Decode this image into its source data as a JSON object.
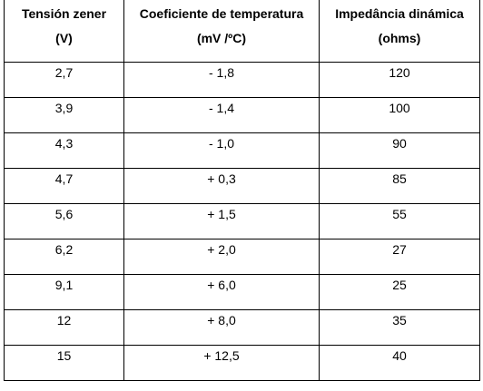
{
  "table": {
    "headers": [
      {
        "line1": "Tensión zener",
        "line2": "(V)"
      },
      {
        "line1": "Coeficiente de temperatura",
        "line2": "(mV /ºC)"
      },
      {
        "line1": "Impedância dinámica",
        "line2": "(ohms)"
      }
    ],
    "rows": [
      [
        "2,7",
        "- 1,8",
        "120"
      ],
      [
        "3,9",
        "- 1,4",
        "100"
      ],
      [
        "4,3",
        "- 1,0",
        "90"
      ],
      [
        "4,7",
        "+ 0,3",
        "85"
      ],
      [
        "5,6",
        "+ 1,5",
        "55"
      ],
      [
        "6,2",
        "+ 2,0",
        "27"
      ],
      [
        "9,1",
        "+ 6,0",
        "25"
      ],
      [
        "12",
        "+ 8,0",
        "35"
      ],
      [
        "15",
        "+ 12,5",
        "40"
      ]
    ]
  }
}
